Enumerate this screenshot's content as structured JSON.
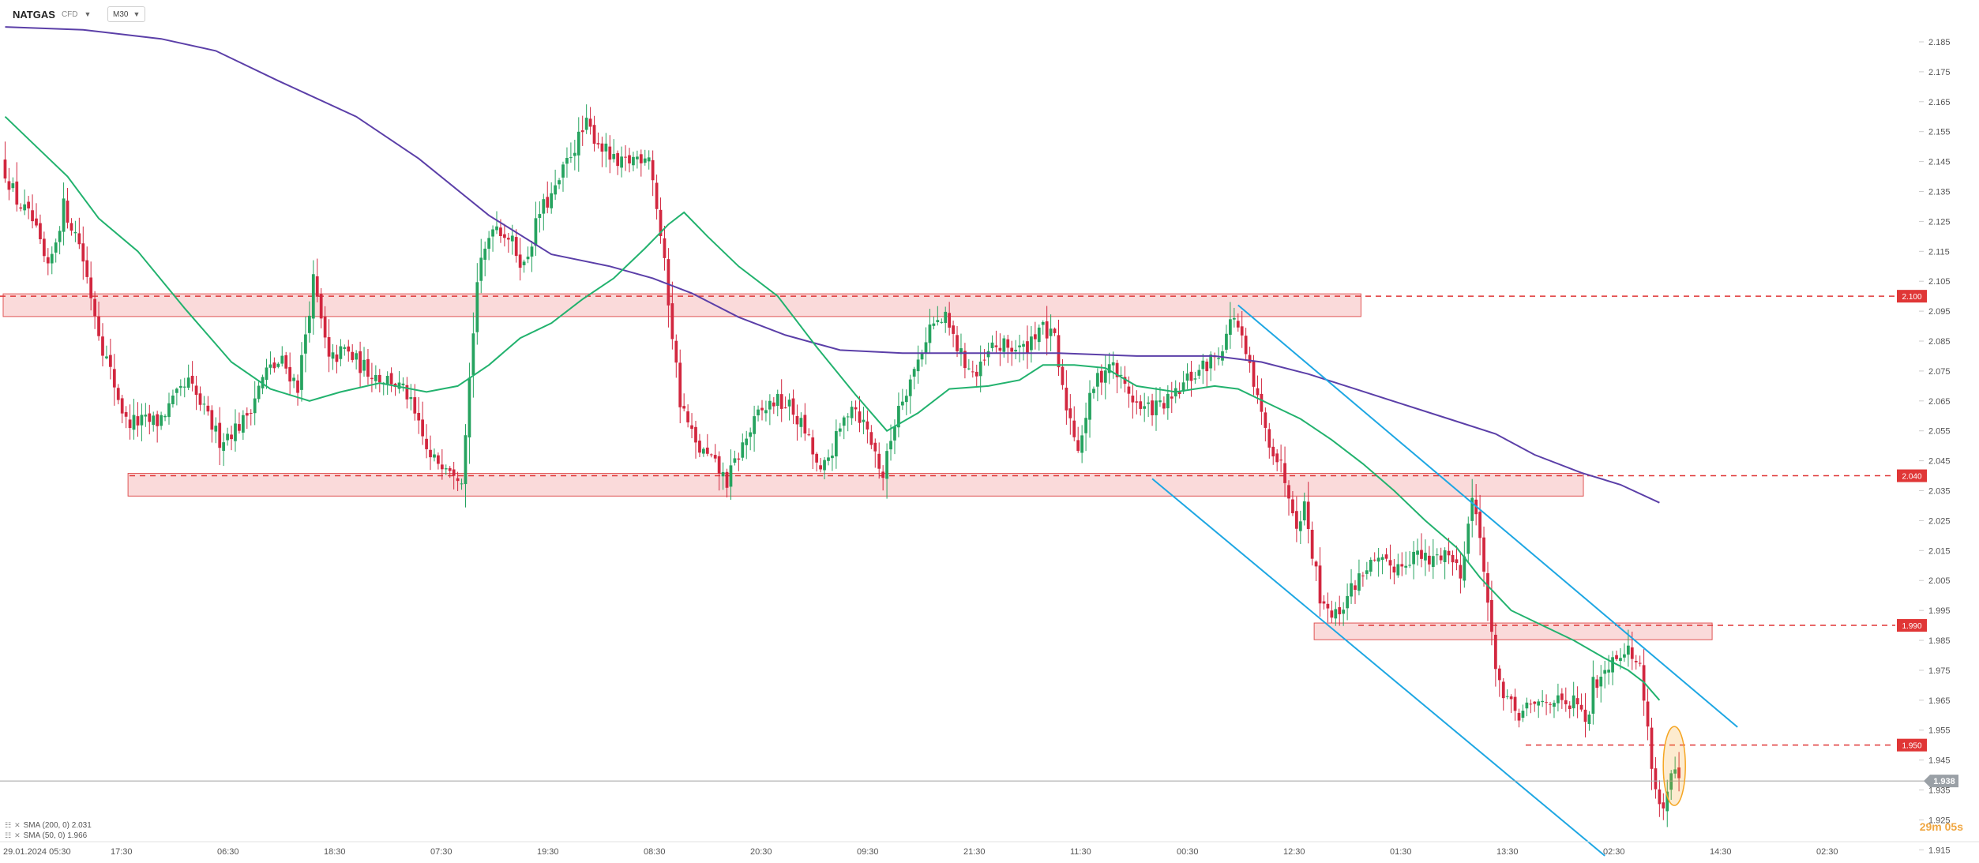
{
  "header": {
    "symbol": "NATGAS",
    "symbol_sub": "CFD",
    "timeframe": "M30"
  },
  "legend": [
    {
      "label": "SMA (200, 0) 2.031"
    },
    {
      "label": "SMA (50, 0) 1.966"
    }
  ],
  "timer": "29m 05s",
  "colors": {
    "up": "#26a35f",
    "down": "#d2273f",
    "sma200": "#5b3fa8",
    "sma50": "#22b26e",
    "zone_fill": "#f9d3d3",
    "zone_stroke": "#e05555",
    "level_line": "#e03636",
    "channel": "#1ea7e3",
    "price_tag": "#9aa0a6",
    "highlight": "#f5a623"
  },
  "chart_data": {
    "type": "candlestick",
    "ylim": [
      1.91,
      2.19
    ],
    "y_ticks": [
      "2.185",
      "2.175",
      "2.165",
      "2.155",
      "2.145",
      "2.135",
      "2.125",
      "2.115",
      "2.105",
      "2.095",
      "2.085",
      "2.075",
      "2.065",
      "2.055",
      "2.045",
      "2.035",
      "2.025",
      "2.015",
      "2.005",
      "1.995",
      "1.985",
      "1.975",
      "1.965",
      "1.955",
      "1.945",
      "1.935",
      "1.925",
      "1.915"
    ],
    "x_tick_labels": [
      "29.01.2024 05:30",
      "17:30",
      "06:30",
      "18:30",
      "07:30",
      "19:30",
      "08:30",
      "20:30",
      "09:30",
      "21:30",
      "11:30",
      "00:30",
      "12:30",
      "01:30",
      "13:30",
      "02:30",
      "14:30",
      "02:30"
    ],
    "n_slots": 490,
    "candle_count": 430,
    "current_price": {
      "value": 1.938,
      "label": "1.938"
    },
    "price_levels": [
      {
        "value": 2.1,
        "label": "2.100"
      },
      {
        "value": 2.04,
        "label": "2.040"
      },
      {
        "value": 1.99,
        "label": "1.990"
      },
      {
        "value": 1.95,
        "label": "1.950"
      }
    ],
    "resistance_zones": [
      {
        "x_start": 0,
        "x_end": 347,
        "y_low": 2.094,
        "y_high": 2.1
      },
      {
        "x_start": 32,
        "x_end": 404,
        "y_low": 2.034,
        "y_high": 2.04
      },
      {
        "x_start": 336,
        "x_end": 437,
        "y_low": 1.986,
        "y_high": 1.99
      }
    ],
    "channel_lines": [
      {
        "x": [
          316,
          444
        ],
        "y": [
          2.097,
          1.956
        ]
      },
      {
        "x": [
          294,
          410
        ],
        "y": [
          2.039,
          1.913
        ]
      }
    ],
    "anchors": [
      [
        0,
        2.145
      ],
      [
        4,
        2.132
      ],
      [
        8,
        2.125
      ],
      [
        12,
        2.108
      ],
      [
        16,
        2.13
      ],
      [
        20,
        2.118
      ],
      [
        26,
        2.083
      ],
      [
        32,
        2.058
      ],
      [
        40,
        2.058
      ],
      [
        48,
        2.071
      ],
      [
        56,
        2.052
      ],
      [
        62,
        2.058
      ],
      [
        68,
        2.075
      ],
      [
        72,
        2.078
      ],
      [
        76,
        2.07
      ],
      [
        80,
        2.105
      ],
      [
        84,
        2.078
      ],
      [
        88,
        2.082
      ],
      [
        92,
        2.077
      ],
      [
        97,
        2.073
      ],
      [
        100,
        2.072
      ],
      [
        104,
        2.067
      ],
      [
        110,
        2.045
      ],
      [
        114,
        2.045
      ],
      [
        118,
        2.04
      ],
      [
        122,
        2.105
      ],
      [
        126,
        2.125
      ],
      [
        130,
        2.12
      ],
      [
        134,
        2.11
      ],
      [
        138,
        2.128
      ],
      [
        142,
        2.135
      ],
      [
        146,
        2.148
      ],
      [
        150,
        2.157
      ],
      [
        154,
        2.15
      ],
      [
        158,
        2.143
      ],
      [
        162,
        2.146
      ],
      [
        166,
        2.148
      ],
      [
        168,
        2.13
      ],
      [
        170,
        2.11
      ],
      [
        174,
        2.065
      ],
      [
        178,
        2.05
      ],
      [
        182,
        2.045
      ],
      [
        186,
        2.038
      ],
      [
        190,
        2.05
      ],
      [
        194,
        2.06
      ],
      [
        198,
        2.065
      ],
      [
        202,
        2.063
      ],
      [
        206,
        2.055
      ],
      [
        210,
        2.04
      ],
      [
        214,
        2.052
      ],
      [
        218,
        2.065
      ],
      [
        222,
        2.055
      ],
      [
        226,
        2.04
      ],
      [
        230,
        2.064
      ],
      [
        234,
        2.075
      ],
      [
        238,
        2.09
      ],
      [
        242,
        2.092
      ],
      [
        246,
        2.08
      ],
      [
        250,
        2.073
      ],
      [
        254,
        2.083
      ],
      [
        258,
        2.083
      ],
      [
        262,
        2.082
      ],
      [
        266,
        2.09
      ],
      [
        270,
        2.085
      ],
      [
        272,
        2.068
      ],
      [
        276,
        2.05
      ],
      [
        280,
        2.07
      ],
      [
        284,
        2.078
      ],
      [
        288,
        2.07
      ],
      [
        292,
        2.062
      ],
      [
        296,
        2.063
      ],
      [
        300,
        2.065
      ],
      [
        304,
        2.072
      ],
      [
        308,
        2.076
      ],
      [
        312,
        2.081
      ],
      [
        316,
        2.094
      ],
      [
        320,
        2.075
      ],
      [
        324,
        2.055
      ],
      [
        328,
        2.043
      ],
      [
        330,
        2.035
      ],
      [
        332,
        2.025
      ],
      [
        334,
        2.03
      ],
      [
        338,
        2.0
      ],
      [
        342,
        1.993
      ],
      [
        346,
        2.002
      ],
      [
        350,
        2.01
      ],
      [
        354,
        2.01
      ],
      [
        358,
        2.01
      ],
      [
        362,
        2.014
      ],
      [
        366,
        2.011
      ],
      [
        370,
        2.015
      ],
      [
        374,
        2.008
      ],
      [
        377,
        2.032
      ],
      [
        379,
        2.022
      ],
      [
        381,
        1.995
      ],
      [
        383,
        1.978
      ],
      [
        385,
        1.965
      ],
      [
        389,
        1.96
      ],
      [
        393,
        1.963
      ],
      [
        397,
        1.966
      ],
      [
        401,
        1.962
      ],
      [
        404,
        1.965
      ],
      [
        406,
        1.955
      ],
      [
        408,
        1.97
      ],
      [
        412,
        1.978
      ],
      [
        416,
        1.983
      ],
      [
        420,
        1.976
      ],
      [
        422,
        1.955
      ],
      [
        424,
        1.935
      ],
      [
        426,
        1.928
      ],
      [
        428,
        1.94
      ],
      [
        430,
        1.938
      ]
    ],
    "sma200": [
      [
        0,
        2.19
      ],
      [
        20,
        2.189
      ],
      [
        40,
        2.186
      ],
      [
        54,
        2.182
      ],
      [
        70,
        2.172
      ],
      [
        90,
        2.16
      ],
      [
        106,
        2.146
      ],
      [
        124,
        2.127
      ],
      [
        140,
        2.114
      ],
      [
        155,
        2.11
      ],
      [
        166,
        2.106
      ],
      [
        176,
        2.101
      ],
      [
        188,
        2.093
      ],
      [
        200,
        2.087
      ],
      [
        214,
        2.082
      ],
      [
        230,
        2.081
      ],
      [
        250,
        2.081
      ],
      [
        270,
        2.081
      ],
      [
        290,
        2.08
      ],
      [
        310,
        2.08
      ],
      [
        322,
        2.078
      ],
      [
        334,
        2.074
      ],
      [
        346,
        2.069
      ],
      [
        358,
        2.064
      ],
      [
        370,
        2.059
      ],
      [
        382,
        2.054
      ],
      [
        392,
        2.047
      ],
      [
        404,
        2.041
      ],
      [
        414,
        2.037
      ],
      [
        424,
        2.031
      ]
    ],
    "sma50": [
      [
        0,
        2.16
      ],
      [
        8,
        2.15
      ],
      [
        16,
        2.14
      ],
      [
        24,
        2.126
      ],
      [
        34,
        2.115
      ],
      [
        46,
        2.096
      ],
      [
        58,
        2.078
      ],
      [
        68,
        2.069
      ],
      [
        78,
        2.065
      ],
      [
        86,
        2.068
      ],
      [
        96,
        2.071
      ],
      [
        108,
        2.068
      ],
      [
        116,
        2.07
      ],
      [
        124,
        2.077
      ],
      [
        132,
        2.086
      ],
      [
        140,
        2.091
      ],
      [
        148,
        2.099
      ],
      [
        156,
        2.106
      ],
      [
        164,
        2.116
      ],
      [
        170,
        2.124
      ],
      [
        174,
        2.128
      ],
      [
        180,
        2.12
      ],
      [
        188,
        2.11
      ],
      [
        198,
        2.1
      ],
      [
        208,
        2.083
      ],
      [
        218,
        2.067
      ],
      [
        226,
        2.055
      ],
      [
        234,
        2.061
      ],
      [
        242,
        2.069
      ],
      [
        252,
        2.07
      ],
      [
        260,
        2.072
      ],
      [
        266,
        2.077
      ],
      [
        274,
        2.077
      ],
      [
        282,
        2.076
      ],
      [
        290,
        2.07
      ],
      [
        300,
        2.068
      ],
      [
        310,
        2.07
      ],
      [
        316,
        2.069
      ],
      [
        324,
        2.064
      ],
      [
        332,
        2.059
      ],
      [
        340,
        2.052
      ],
      [
        348,
        2.044
      ],
      [
        356,
        2.035
      ],
      [
        364,
        2.025
      ],
      [
        372,
        2.016
      ],
      [
        378,
        2.006
      ],
      [
        386,
        1.995
      ],
      [
        394,
        1.99
      ],
      [
        402,
        1.985
      ],
      [
        410,
        1.979
      ],
      [
        416,
        1.975
      ],
      [
        420,
        1.971
      ],
      [
        424,
        1.965
      ]
    ]
  }
}
